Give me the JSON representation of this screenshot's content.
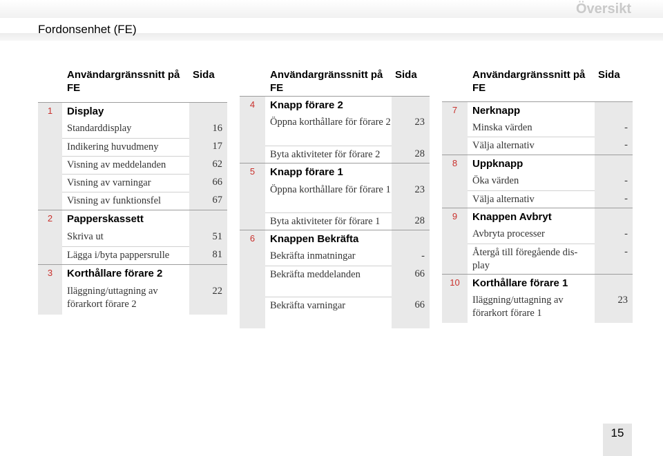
{
  "header": {
    "section": "Översikt",
    "title": "Fordonsenhet (FE)"
  },
  "columns": [
    {
      "head_text": "Användargränssnitt på FE",
      "head_page": "Sida",
      "rows": [
        {
          "type": "sec",
          "num": "1",
          "text": "Display",
          "page": ""
        },
        {
          "type": "item",
          "text": "Standarddisplay",
          "page": "16"
        },
        {
          "type": "item",
          "text": "Indikering huvudmeny",
          "page": "17"
        },
        {
          "type": "item",
          "text": "Visning av meddelanden",
          "page": "62"
        },
        {
          "type": "item",
          "text": "Visning av varningar",
          "page": "66"
        },
        {
          "type": "item",
          "text": "Visning av funktionsfel",
          "page": "67"
        },
        {
          "type": "sec",
          "num": "2",
          "text": "Papperskassett",
          "page": ""
        },
        {
          "type": "item",
          "text": "Skriva ut",
          "page": "51"
        },
        {
          "type": "item",
          "text": "Lägga i/byta pappersrulle",
          "page": "81"
        },
        {
          "type": "sec",
          "num": "3",
          "text": "Korthållare förare 2",
          "page": ""
        },
        {
          "type": "item",
          "text": "Iläggning/uttagning av förarkort förare 2",
          "page": "22"
        }
      ]
    },
    {
      "head_text": "Användargränssnitt på FE",
      "head_page": "Sida",
      "rows": [
        {
          "type": "sec",
          "num": "4",
          "text": "Knapp förare 2",
          "page": ""
        },
        {
          "type": "item",
          "text": "Öppna korthållare för förare 2",
          "page": "23"
        },
        {
          "type": "item",
          "text": "Byta aktiviteter för förare 2",
          "page": "28"
        },
        {
          "type": "sec",
          "num": "5",
          "text": "Knapp förare 1",
          "page": ""
        },
        {
          "type": "item",
          "text": "Öppna korthållare för förare 1",
          "page": "23"
        },
        {
          "type": "item",
          "text": "Byta aktiviteter för förare 1",
          "page": "28"
        },
        {
          "type": "sec",
          "num": "6",
          "text": "Knappen Bekräfta",
          "page": ""
        },
        {
          "type": "item",
          "text": "Bekräfta inmatningar",
          "page": "-"
        },
        {
          "type": "item",
          "text": "Bekräfta meddelanden",
          "page": "66"
        },
        {
          "type": "item",
          "text": "Bekräfta varningar",
          "page": "66"
        }
      ]
    },
    {
      "head_text": "Användargränssnitt på FE",
      "head_page": "Sida",
      "rows": [
        {
          "type": "sec",
          "num": "7",
          "text": "Nerknapp",
          "page": ""
        },
        {
          "type": "item",
          "text": "Minska värden",
          "page": "-"
        },
        {
          "type": "item",
          "text": "Välja alternativ",
          "page": "-"
        },
        {
          "type": "sec",
          "num": "8",
          "text": "Uppknapp",
          "page": ""
        },
        {
          "type": "item",
          "text": "Öka värden",
          "page": "-"
        },
        {
          "type": "item",
          "text": "Välja alternativ",
          "page": "-"
        },
        {
          "type": "sec",
          "num": "9",
          "text": "Knappen Avbryt",
          "page": ""
        },
        {
          "type": "item",
          "text": "Avbryta processer",
          "page": "-"
        },
        {
          "type": "item",
          "text": "Återgå till föregående dis-play",
          "page": "-"
        },
        {
          "type": "sec",
          "num": "10",
          "text": "Korthållare förare 1",
          "page": ""
        },
        {
          "type": "item",
          "text": "Iläggning/uttagning av förarkort förare 1",
          "page": "23"
        }
      ]
    }
  ],
  "page_number": "15",
  "colors": {
    "number_accent": "#c9302c",
    "cell_gray": "#e9e9e9",
    "header_gray": "#c9c9c9"
  }
}
